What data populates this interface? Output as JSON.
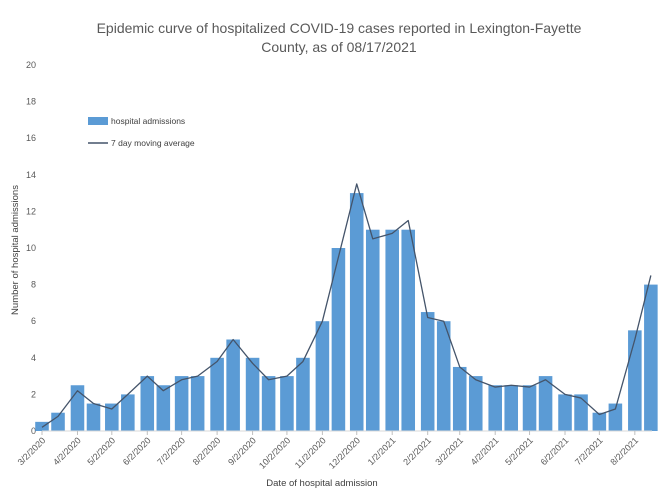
{
  "chart_data": {
    "type": "bar",
    "title_lines": [
      "Epidemic curve of hospitalized COVID-19 cases reported in Lexington-Fayette",
      "County, as of 08/17/2021"
    ],
    "xlabel": "Date of hospital admission",
    "ylabel": "Number of hospital admissions",
    "ylim": [
      0,
      20
    ],
    "yticks": [
      0,
      2,
      4,
      6,
      8,
      10,
      12,
      14,
      16,
      18,
      20
    ],
    "grid": false,
    "legend_position": "upper-left",
    "colors": {
      "bars": "#5b9bd5",
      "moving_average": "#44546a",
      "text": "#595959"
    },
    "x_start": "3/2/2020",
    "x_end": "8/17/2021",
    "x_tick_labels": [
      "3/2/2020",
      "4/2/2020",
      "5/2/2020",
      "6/2/2020",
      "7/2/2020",
      "8/2/2020",
      "9/2/2020",
      "10/2/2020",
      "11/2/2020",
      "12/2/2020",
      "1/2/2021",
      "2/2/2021",
      "3/2/2021",
      "4/2/2021",
      "5/2/2021",
      "6/2/2021",
      "7/2/2021",
      "8/2/2021"
    ],
    "series": [
      {
        "name": "hospital admissions",
        "type": "bar",
        "x": [
          "3/2/2020",
          "3/16/2020",
          "4/2/2020",
          "4/16/2020",
          "5/2/2020",
          "5/16/2020",
          "6/2/2020",
          "6/16/2020",
          "7/2/2020",
          "7/16/2020",
          "8/2/2020",
          "8/16/2020",
          "9/2/2020",
          "9/16/2020",
          "10/2/2020",
          "10/16/2020",
          "11/2/2020",
          "11/16/2020",
          "12/2/2020",
          "12/16/2020",
          "1/2/2021",
          "1/16/2021",
          "2/2/2021",
          "2/16/2021",
          "3/2/2021",
          "3/16/2021",
          "4/2/2021",
          "4/16/2021",
          "5/2/2021",
          "5/16/2021",
          "6/2/2021",
          "6/16/2021",
          "7/2/2021",
          "7/16/2021",
          "8/2/2021",
          "8/16/2021"
        ],
        "values": [
          0.5,
          1,
          2.5,
          1.5,
          1.5,
          2,
          3,
          2.5,
          3,
          3,
          4,
          5,
          4,
          3,
          3,
          4,
          6,
          10,
          13,
          11,
          11,
          11,
          6.5,
          6,
          3.5,
          3,
          2.5,
          2.5,
          2.5,
          3,
          2,
          2,
          1,
          1.5,
          5.5,
          8
        ]
      },
      {
        "name": "7 day moving average",
        "type": "line",
        "x": [
          "3/2/2020",
          "3/16/2020",
          "4/2/2020",
          "4/16/2020",
          "5/2/2020",
          "5/16/2020",
          "6/2/2020",
          "6/16/2020",
          "7/2/2020",
          "7/16/2020",
          "8/2/2020",
          "8/16/2020",
          "9/2/2020",
          "9/16/2020",
          "10/2/2020",
          "10/16/2020",
          "11/2/2020",
          "11/16/2020",
          "12/2/2020",
          "12/16/2020",
          "1/2/2021",
          "1/16/2021",
          "2/2/2021",
          "2/16/2021",
          "3/2/2021",
          "3/16/2021",
          "4/2/2021",
          "4/16/2021",
          "5/2/2021",
          "5/16/2021",
          "6/2/2021",
          "6/16/2021",
          "7/2/2021",
          "7/16/2021",
          "8/2/2021",
          "8/16/2021"
        ],
        "values": [
          0.2,
          0.8,
          2.2,
          1.5,
          1.2,
          2,
          3,
          2.2,
          2.8,
          3,
          3.8,
          5,
          3.7,
          2.8,
          3,
          3.8,
          6,
          9.5,
          13.5,
          10.5,
          10.8,
          11.5,
          6.2,
          6,
          3.5,
          2.8,
          2.4,
          2.5,
          2.4,
          2.8,
          2,
          1.8,
          0.9,
          1.2,
          5,
          8.5
        ]
      }
    ]
  }
}
